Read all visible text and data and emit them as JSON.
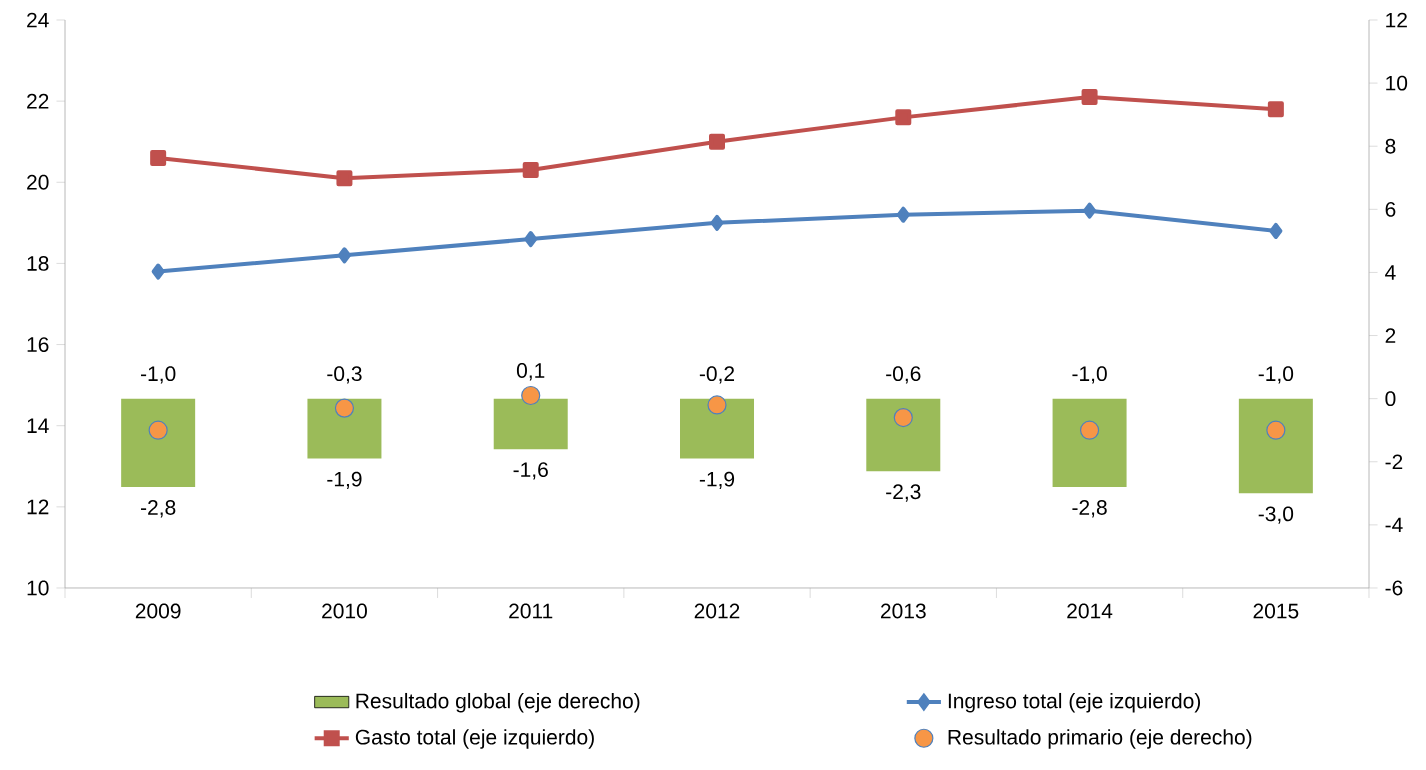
{
  "chart_data": {
    "type": "line",
    "categories": [
      "2009",
      "2010",
      "2011",
      "2012",
      "2013",
      "2014",
      "2015"
    ],
    "ylim": [
      10,
      24
    ],
    "yticks": [
      10,
      12,
      14,
      16,
      18,
      20,
      22,
      24
    ],
    "y2lim": [
      -6,
      12
    ],
    "y2ticks": [
      -6,
      -4,
      -2,
      0,
      2,
      4,
      6,
      8,
      10,
      12
    ],
    "grid": false,
    "legend": "bottom",
    "series": [
      {
        "name": "Resultado global (eje derecho)",
        "type": "bar",
        "axis": "y2",
        "color": "#9bbb59",
        "values": [
          -2.8,
          -1.9,
          -1.6,
          -1.9,
          -2.3,
          -2.8,
          -3.0
        ],
        "value_labels": [
          "-2,8",
          "-1,9",
          "-1,6",
          "-1,9",
          "-2,3",
          "-2,8",
          "-3,0"
        ]
      },
      {
        "name": "Ingreso total (eje izquierdo)",
        "color": "#4f81bd",
        "marker": "diamond",
        "values": [
          17.8,
          18.2,
          18.6,
          19.0,
          19.2,
          19.3,
          18.8
        ]
      },
      {
        "name": "Gasto total (eje izquierdo)",
        "color": "#c0504d",
        "marker": "square",
        "values": [
          20.6,
          20.1,
          20.3,
          21.0,
          21.6,
          22.1,
          21.8
        ]
      },
      {
        "name": "Resultado primario (eje derecho)",
        "type": "scatter",
        "axis": "y2",
        "color": "#f79646",
        "marker": "circle",
        "values": [
          -1.0,
          -0.3,
          0.1,
          -0.2,
          -0.6,
          -1.0,
          -1.0
        ],
        "value_labels": [
          "-1,0",
          "-0,3",
          "0,1",
          "-0,2",
          "-0,6",
          "-1,0",
          "-1,0"
        ]
      }
    ]
  }
}
